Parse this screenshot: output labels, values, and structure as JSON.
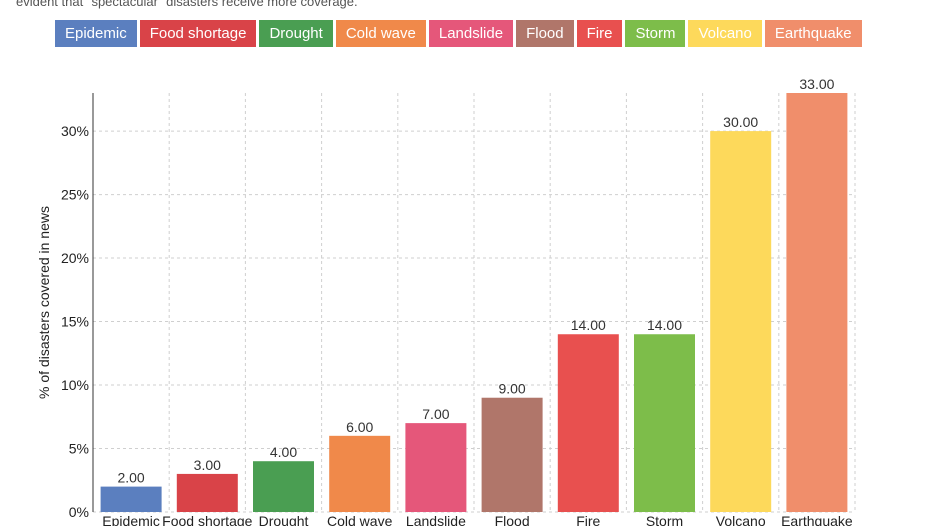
{
  "caption": "evident that \"spectacular\" disasters receive more coverage.",
  "chart_data": {
    "type": "bar",
    "categories": [
      "Epidemic",
      "Food shortage",
      "Drought",
      "Cold wave",
      "Landslide",
      "Flood",
      "Fire",
      "Storm",
      "Volcano",
      "Earthquake"
    ],
    "values": [
      2,
      3,
      4,
      6,
      7,
      9,
      14,
      14,
      30,
      33
    ],
    "value_labels": [
      "2.00",
      "3.00",
      "4.00",
      "6.00",
      "7.00",
      "9.00",
      "14.00",
      "14.00",
      "30.00",
      "33.00"
    ],
    "colors": [
      "#5b7fbf",
      "#d94348",
      "#4a9e52",
      "#f0894a",
      "#e5577a",
      "#b0766a",
      "#e8504f",
      "#7dbd4a",
      "#fdd95b",
      "#f08e6b"
    ],
    "ylabel": "% of disasters covered in news",
    "ylim": [
      0,
      33
    ],
    "yticks": [
      0,
      5,
      10,
      15,
      20,
      25,
      30
    ],
    "ytick_labels": [
      "0%",
      "5%",
      "10%",
      "15%",
      "20%",
      "25%",
      "30%"
    ],
    "grid": true,
    "legend_position": "top"
  }
}
